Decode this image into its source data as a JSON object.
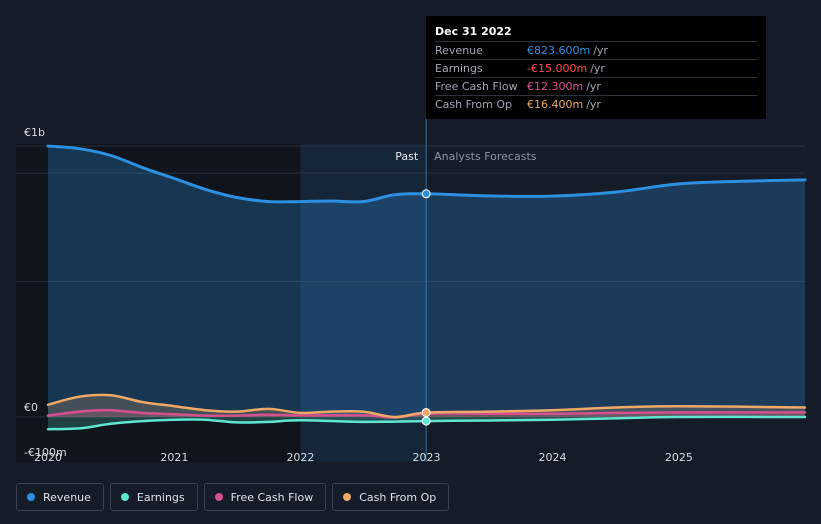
{
  "chart_data": {
    "type": "line",
    "x_domain": [
      "2020-01-01",
      "2026-01-01"
    ],
    "y_domain": [
      -100,
      1000
    ],
    "y_ticks": [
      {
        "value": 1000,
        "label": "€1b"
      },
      {
        "value": 0,
        "label": "€0"
      },
      {
        "value": -100,
        "label": "-€100m"
      }
    ],
    "gridlines": [
      1000,
      900,
      500,
      0
    ],
    "x_ticks": [
      {
        "date": "2020-01-01",
        "label": "2020"
      },
      {
        "date": "2021-01-01",
        "label": "2021"
      },
      {
        "date": "2022-01-01",
        "label": "2022"
      },
      {
        "date": "2023-01-01",
        "label": "2023"
      },
      {
        "date": "2024-01-01",
        "label": "2024"
      },
      {
        "date": "2025-01-01",
        "label": "2025"
      }
    ],
    "highlight_range": [
      "2022-01-01",
      "2023-01-01"
    ],
    "divider_date": "2022-12-31",
    "past_label": "Past",
    "forecast_label": "Analysts Forecasts",
    "series": [
      {
        "name": "Revenue",
        "color": "#2d8fe0",
        "points": [
          [
            "2020-01-01",
            1000
          ],
          [
            "2020-04-01",
            990
          ],
          [
            "2020-07-01",
            965
          ],
          [
            "2020-10-01",
            920
          ],
          [
            "2021-01-01",
            880
          ],
          [
            "2021-04-01",
            840
          ],
          [
            "2021-07-01",
            810
          ],
          [
            "2021-10-01",
            795
          ],
          [
            "2022-01-01",
            795
          ],
          [
            "2022-04-01",
            797
          ],
          [
            "2022-07-01",
            795
          ],
          [
            "2022-10-01",
            820
          ],
          [
            "2022-12-31",
            823.6
          ],
          [
            "2023-07-01",
            816
          ],
          [
            "2024-01-01",
            815
          ],
          [
            "2024-07-01",
            830
          ],
          [
            "2025-01-01",
            860
          ],
          [
            "2025-07-01",
            870
          ],
          [
            "2026-01-01",
            875
          ]
        ]
      },
      {
        "name": "Earnings",
        "color": "#5ee6cf",
        "points": [
          [
            "2020-01-01",
            -45
          ],
          [
            "2020-04-01",
            -42
          ],
          [
            "2020-07-01",
            -25
          ],
          [
            "2020-10-01",
            -15
          ],
          [
            "2021-01-01",
            -10
          ],
          [
            "2021-04-01",
            -10
          ],
          [
            "2021-07-01",
            -20
          ],
          [
            "2021-10-01",
            -18
          ],
          [
            "2022-01-01",
            -12
          ],
          [
            "2022-07-01",
            -18
          ],
          [
            "2022-12-31",
            -15
          ],
          [
            "2023-07-01",
            -13
          ],
          [
            "2024-01-01",
            -10
          ],
          [
            "2024-07-01",
            -5
          ],
          [
            "2025-01-01",
            0
          ],
          [
            "2026-01-01",
            0
          ]
        ]
      },
      {
        "name": "Free Cash Flow",
        "color": "#d4518f",
        "points": [
          [
            "2020-01-01",
            5
          ],
          [
            "2020-04-01",
            20
          ],
          [
            "2020-07-01",
            25
          ],
          [
            "2020-10-01",
            15
          ],
          [
            "2021-01-01",
            10
          ],
          [
            "2021-04-01",
            5
          ],
          [
            "2021-07-01",
            5
          ],
          [
            "2021-10-01",
            8
          ],
          [
            "2022-01-01",
            6
          ],
          [
            "2022-07-01",
            6
          ],
          [
            "2022-10-01",
            -2
          ],
          [
            "2022-12-31",
            12.3
          ],
          [
            "2023-07-01",
            12
          ],
          [
            "2024-01-01",
            12
          ],
          [
            "2024-07-01",
            15
          ],
          [
            "2025-01-01",
            17
          ],
          [
            "2026-01-01",
            17
          ]
        ]
      },
      {
        "name": "Cash From Op",
        "color": "#eea967",
        "points": [
          [
            "2020-01-01",
            45
          ],
          [
            "2020-04-01",
            75
          ],
          [
            "2020-07-01",
            80
          ],
          [
            "2020-10-01",
            55
          ],
          [
            "2021-01-01",
            40
          ],
          [
            "2021-04-01",
            25
          ],
          [
            "2021-07-01",
            20
          ],
          [
            "2021-10-01",
            30
          ],
          [
            "2022-01-01",
            15
          ],
          [
            "2022-04-01",
            20
          ],
          [
            "2022-07-01",
            20
          ],
          [
            "2022-10-01",
            0
          ],
          [
            "2022-12-31",
            16.4
          ],
          [
            "2023-07-01",
            20
          ],
          [
            "2024-01-01",
            25
          ],
          [
            "2024-07-01",
            35
          ],
          [
            "2025-01-01",
            40
          ],
          [
            "2026-01-01",
            35
          ]
        ]
      }
    ]
  },
  "tooltip": {
    "date": "Dec 31 2022",
    "rows": [
      {
        "label": "Revenue",
        "value": "€823.600m",
        "unit": "/yr",
        "color": "#2d8fe0"
      },
      {
        "label": "Earnings",
        "value": "-€15.000m",
        "unit": "/yr",
        "color": "#ff4d4d"
      },
      {
        "label": "Free Cash Flow",
        "value": "€12.300m",
        "unit": "/yr",
        "color": "#e0529a"
      },
      {
        "label": "Cash From Op",
        "value": "€16.400m",
        "unit": "/yr",
        "color": "#f0a85c"
      }
    ]
  },
  "legend": [
    {
      "label": "Revenue",
      "color": "#2d8fe0"
    },
    {
      "label": "Earnings",
      "color": "#5ee6cf"
    },
    {
      "label": "Free Cash Flow",
      "color": "#d4518f"
    },
    {
      "label": "Cash From Op",
      "color": "#eea967"
    }
  ]
}
